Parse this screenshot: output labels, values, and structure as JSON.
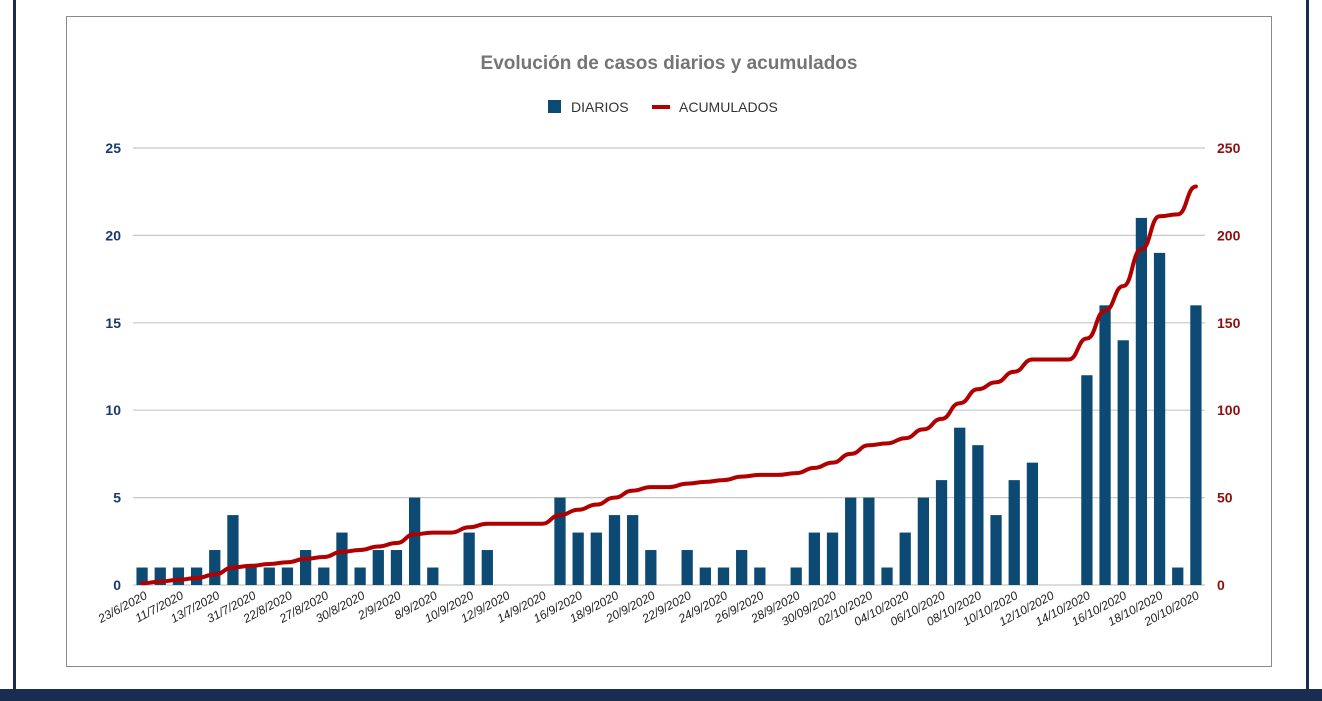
{
  "chart_data": {
    "type": "bar",
    "title": "Evolución de casos diarios y acumulados",
    "legend": [
      "DIARIOS",
      "ACUMULADOS"
    ],
    "legend_position": "top",
    "colors": {
      "bars": "#0d4a73",
      "line": "#b00000",
      "grid": "#c8c8c8",
      "left_axis": "#1b3a6b",
      "right_axis": "#8b1010"
    },
    "y_left": {
      "min": 0,
      "max": 25,
      "ticks": [
        0,
        5,
        10,
        15,
        20,
        25
      ]
    },
    "y_right": {
      "min": 0,
      "max": 250,
      "ticks": [
        0,
        50,
        100,
        150,
        200,
        250
      ]
    },
    "x_tick_labels": [
      "23/6/2020",
      "11/7/2020",
      "13/7/2020",
      "31/7/2020",
      "22/8/2020",
      "27/8/2020",
      "30/8/2020",
      "2/9/2020",
      "8/9/2020",
      "10/9/2020",
      "12/9/2020",
      "14/9/2020",
      "16/9/2020",
      "18/9/2020",
      "20/9/2020",
      "22/9/2020",
      "24/9/2020",
      "26/9/2020",
      "28/9/2020",
      "30/09/2020",
      "02/10/2020",
      "04/10/2020",
      "06/10/2020",
      "08/10/2020",
      "10/10/2020",
      "12/10/2020",
      "14/10/2020",
      "16/10/2020",
      "18/10/2020",
      "20/10/2020"
    ],
    "series": [
      {
        "name": "DIARIOS",
        "type": "bar",
        "axis": "left",
        "values": [
          1,
          1,
          1,
          1,
          2,
          4,
          1,
          1,
          1,
          2,
          1,
          3,
          1,
          2,
          2,
          5,
          1,
          0,
          3,
          2,
          0,
          0,
          0,
          5,
          3,
          3,
          4,
          4,
          2,
          0,
          2,
          1,
          1,
          2,
          1,
          0,
          1,
          3,
          3,
          5,
          5,
          1,
          3,
          5,
          6,
          9,
          8,
          4,
          6,
          7,
          0,
          0,
          12,
          16,
          14,
          21,
          19,
          1,
          16
        ]
      },
      {
        "name": "ACUMULADOS",
        "type": "line",
        "axis": "right",
        "values": [
          1,
          2,
          3,
          4,
          6,
          10,
          11,
          12,
          13,
          15,
          16,
          19,
          20,
          22,
          24,
          29,
          30,
          30,
          33,
          35,
          35,
          35,
          35,
          40,
          43,
          46,
          50,
          54,
          56,
          56,
          58,
          59,
          60,
          62,
          63,
          63,
          64,
          67,
          70,
          75,
          80,
          81,
          84,
          89,
          95,
          104,
          112,
          116,
          122,
          129,
          129,
          129,
          141,
          157,
          171,
          192,
          211,
          212,
          228
        ]
      }
    ]
  }
}
